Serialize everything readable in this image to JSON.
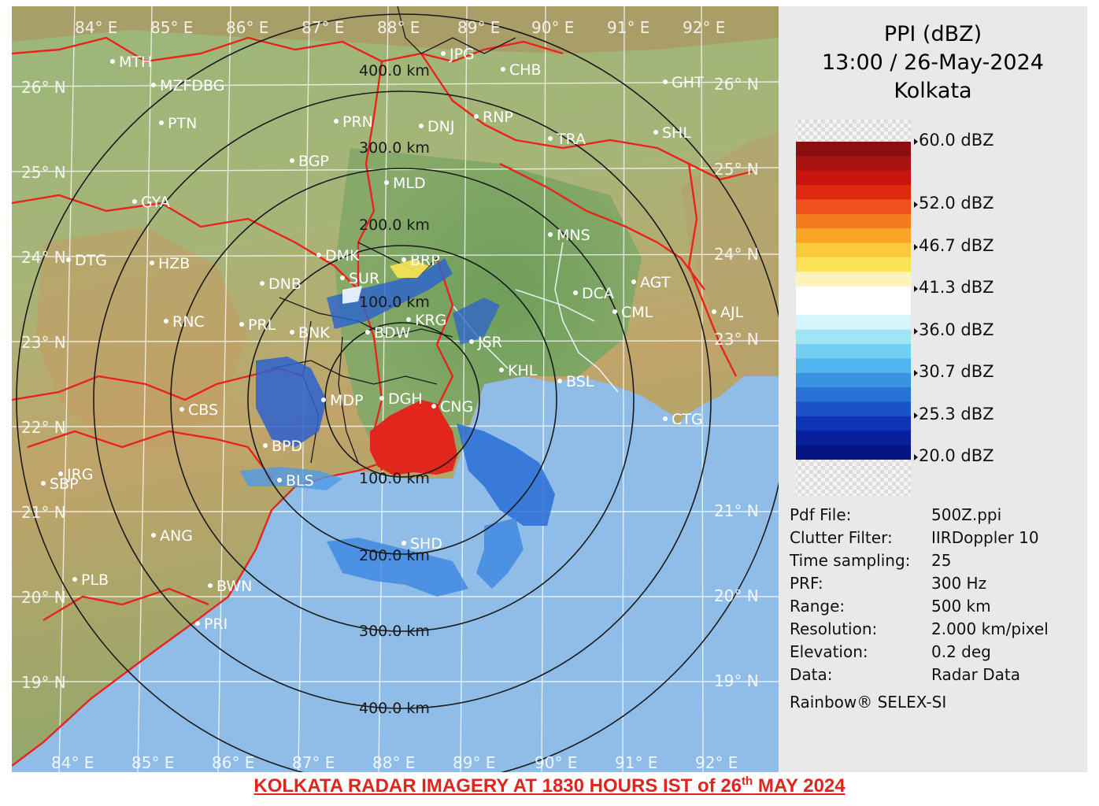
{
  "map": {
    "lon_labels": [
      "84° E",
      "85° E",
      "86° E",
      "87° E",
      "88° E",
      "89° E",
      "90° E",
      "91° E",
      "92° E"
    ],
    "lat_labels": [
      "26° N",
      "25° N",
      "24° N",
      "23° N",
      "22° N",
      "21° N",
      "20° N",
      "19° N"
    ],
    "range_labels": [
      "100.0 km",
      "200.0 km",
      "300.0 km",
      "400.0 km",
      "100.0 km",
      "200.0 km",
      "300.0 km",
      "400.0 km"
    ],
    "stations": [
      "MTH",
      "MZFDBG",
      "PTN",
      "PRN",
      "DNJ",
      "RNP",
      "CHB",
      "JPG",
      "GHT",
      "SHL",
      "TRA",
      "BGP",
      "GYA",
      "MLD",
      "DTG",
      "HZB",
      "DMK",
      "BRP",
      "MNS",
      "DNB",
      "SUR",
      "AGT",
      "DCA",
      "CML",
      "AJL",
      "RNC",
      "PRL",
      "BNK",
      "BDW",
      "KRG",
      "JSR",
      "KHL",
      "BSL",
      "CTG",
      "CBS",
      "MDP",
      "DGH",
      "CNG",
      "BPD",
      "JRG",
      "SBP",
      "ANG",
      "BLS",
      "SHD",
      "PLB",
      "BWN",
      "PRI"
    ]
  },
  "header": {
    "product": "PPI (dBZ)",
    "datetime": "13:00 / 26-May-2024",
    "site": "Kolkata"
  },
  "colorbar": {
    "ticks": [
      "60.0 dBZ",
      "52.0 dBZ",
      "46.7 dBZ",
      "41.3 dBZ",
      "36.0 dBZ",
      "30.7 dBZ",
      "25.3 dBZ",
      "20.0 dBZ"
    ],
    "colors": [
      "#8b0f0f",
      "#a8120f",
      "#c8160f",
      "#e0290f",
      "#f0501b",
      "#f47a1f",
      "#f8a528",
      "#fbc93a",
      "#fde456",
      "#fdf3b8",
      "#ffffff",
      "#ffffff",
      "#d5f4fb",
      "#9fe5f6",
      "#71cff2",
      "#4fb5ec",
      "#3a92e2",
      "#2a72d6",
      "#1b52c9",
      "#0e33b5",
      "#07209c",
      "#051482"
    ]
  },
  "metadata": [
    {
      "key": "Pdf File:",
      "value": "500Z.ppi"
    },
    {
      "key": "Clutter Filter:",
      "value": "IIRDoppler 10"
    },
    {
      "key": "Time sampling:",
      "value": "25"
    },
    {
      "key": "PRF:",
      "value": "300 Hz"
    },
    {
      "key": "Range:",
      "value": "500 km"
    },
    {
      "key": "Resolution:",
      "value": "2.000 km/pixel"
    },
    {
      "key": "Elevation:",
      "value": "0.2 deg"
    },
    {
      "key": "Data:",
      "value": "Radar Data"
    }
  ],
  "credit": "Rainbow® SELEX-SI",
  "caption": {
    "prefix": "KOLKATA RADAR IMAGERY AT 1830 HOURS IST of 26",
    "sup": "th",
    "suffix": " MAY 2024"
  },
  "colors": {
    "caption": "#e0261c",
    "boundary": "#e8241c",
    "rings": "#1a1a1a",
    "sea": "#8fbde8"
  }
}
